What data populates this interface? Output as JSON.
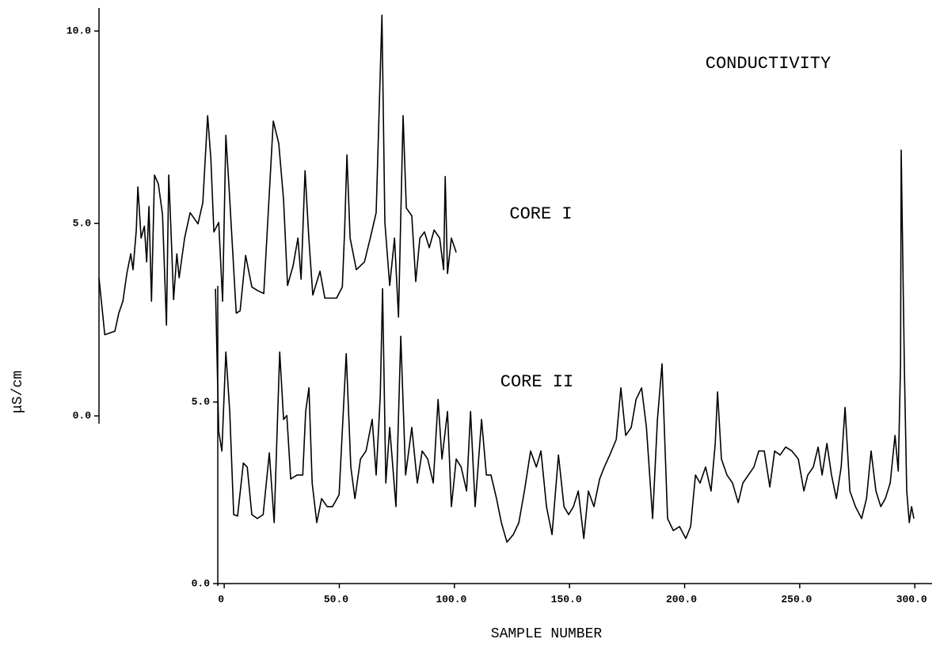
{
  "chart_data": [
    {
      "type": "line",
      "title": "CONDUCTIVITY",
      "y_label": "μS/cm",
      "xlim": [
        -54.4,
        307.5
      ],
      "ylim": [
        -0.2,
        10.6
      ],
      "yticks": [
        {
          "value": 0,
          "label": "0.0"
        },
        {
          "value": 5,
          "label": "5.0"
        },
        {
          "value": 10,
          "label": "10.0"
        }
      ],
      "series": [
        {
          "name": "CORE I",
          "color": "#000000",
          "x": [
            -54.4,
            -51.9,
            -47.5,
            -45.8,
            -44.0,
            -42.3,
            -40.6,
            -39.6,
            -38.2,
            -37.5,
            -36.1,
            -34.7,
            -33.7,
            -32.7,
            -31.6,
            -30.3,
            -28.6,
            -26.8,
            -25.1,
            -24.1,
            -23.0,
            -22.0,
            -20.6,
            -19.6,
            -17.2,
            -14.8,
            -11.4,
            -9.3,
            -7.2,
            -5.8,
            -4.5,
            -2.4,
            -0.7,
            0.7,
            2.1,
            5.2,
            6.9,
            9.3,
            12.0,
            14.4,
            17.2,
            21.3,
            23.7,
            25.8,
            27.5,
            29.9,
            32.0,
            33.4,
            35.1,
            36.8,
            38.5,
            41.6,
            43.7,
            48.8,
            51.3,
            52.3,
            53.3,
            54.7,
            57.4,
            60.9,
            63.6,
            66.0,
            68.5,
            69.8,
            71.9,
            74.0,
            75.7,
            77.7,
            79.1,
            81.5,
            83.2,
            85.0,
            87.0,
            89.1,
            91.2,
            93.6,
            95.3,
            96.0,
            97.0,
            98.7,
            100.8
          ],
          "values": [
            3.59,
            2.11,
            2.2,
            2.67,
            2.98,
            3.7,
            4.21,
            3.8,
            4.83,
            5.95,
            4.62,
            4.93,
            4.0,
            5.44,
            2.98,
            6.26,
            6.02,
            5.24,
            2.36,
            6.26,
            4.62,
            3.02,
            4.21,
            3.59,
            4.62,
            5.28,
            4.99,
            5.54,
            7.8,
            6.67,
            4.78,
            5.03,
            2.98,
            7.29,
            5.95,
            2.67,
            2.73,
            4.17,
            3.35,
            3.26,
            3.18,
            7.66,
            7.08,
            5.61,
            3.39,
            3.9,
            4.62,
            3.55,
            6.37,
            4.58,
            3.14,
            3.76,
            3.06,
            3.06,
            3.35,
            4.83,
            6.78,
            4.62,
            3.8,
            4.0,
            4.66,
            5.28,
            10.41,
            5.03,
            3.39,
            4.62,
            2.57,
            7.8,
            5.4,
            5.2,
            3.49,
            4.62,
            4.78,
            4.37,
            4.83,
            4.62,
            3.8,
            6.22,
            3.7,
            4.62,
            4.25
          ]
        }
      ]
    },
    {
      "type": "line",
      "x_label": "SAMPLE NUMBER",
      "xlim": [
        -54.4,
        307.5
      ],
      "ylim": [
        0,
        8.2
      ],
      "xticks": [
        0,
        {
          "value": 50,
          "label": "50.0"
        },
        {
          "value": 100,
          "label": "100.0"
        },
        {
          "value": 150,
          "label": "150.0"
        },
        {
          "value": 200,
          "label": "200.0"
        },
        {
          "value": 250,
          "label": "250.0"
        },
        {
          "value": 300,
          "label": "300.0"
        }
      ],
      "yticks": [
        {
          "value": 0,
          "label": "0.0"
        },
        {
          "value": 5,
          "label": "5.0"
        }
      ],
      "series": [
        {
          "name": "CORE II",
          "color": "#000000",
          "x": [
            -3.8,
            -2.4,
            -1.0,
            0.7,
            2.4,
            4.1,
            5.8,
            8.3,
            10.0,
            12.0,
            14.4,
            16.9,
            19.6,
            21.7,
            24.1,
            25.8,
            27.2,
            28.9,
            31.6,
            34.1,
            35.4,
            36.8,
            38.2,
            40.2,
            42.3,
            44.7,
            47.1,
            49.9,
            53.0,
            55.0,
            56.8,
            59.2,
            61.6,
            64.3,
            66.0,
            67.8,
            68.8,
            70.2,
            71.9,
            74.6,
            76.7,
            78.8,
            81.5,
            83.9,
            86.0,
            88.4,
            90.8,
            92.9,
            94.6,
            97.0,
            98.7,
            100.8,
            102.9,
            105.3,
            107.0,
            109.0,
            111.8,
            113.9,
            115.9,
            118.3,
            120.4,
            122.8,
            125.6,
            128.0,
            130.4,
            133.1,
            135.6,
            137.6,
            140.0,
            142.4,
            145.2,
            147.6,
            149.6,
            151.7,
            153.8,
            156.2,
            158.2,
            160.6,
            163.1,
            165.1,
            167.5,
            170.3,
            172.3,
            174.4,
            176.8,
            178.9,
            181.3,
            183.4,
            186.1,
            188.2,
            190.2,
            192.6,
            195.1,
            197.8,
            200.5,
            202.6,
            204.7,
            206.7,
            209.1,
            211.5,
            213.3,
            214.3,
            216.0,
            218.4,
            220.8,
            223.3,
            225.3,
            227.7,
            230.1,
            232.2,
            234.6,
            237.0,
            239.1,
            241.5,
            243.9,
            246.6,
            249.4,
            251.8,
            253.5,
            255.9,
            258.0,
            259.7,
            261.8,
            263.8,
            265.9,
            268.0,
            269.7,
            271.8,
            274.2,
            276.9,
            279.0,
            281.0,
            283.1,
            285.2,
            287.2,
            289.3,
            291.4,
            292.8,
            293.8,
            294.1,
            295.5,
            296.5,
            297.6,
            298.6,
            299.6
          ],
          "values": [
            8.12,
            4.19,
            3.65,
            6.38,
            4.74,
            1.9,
            1.86,
            3.32,
            3.21,
            1.9,
            1.79,
            1.9,
            3.6,
            1.68,
            6.38,
            4.52,
            4.63,
            2.88,
            2.99,
            2.99,
            4.74,
            5.39,
            2.77,
            1.68,
            2.34,
            2.12,
            2.12,
            2.45,
            6.33,
            3.21,
            2.34,
            3.43,
            3.65,
            4.52,
            2.99,
            5.17,
            8.12,
            2.77,
            4.3,
            2.12,
            6.81,
            2.99,
            4.3,
            2.77,
            3.65,
            3.43,
            2.77,
            5.07,
            3.43,
            4.74,
            2.12,
            3.43,
            3.21,
            2.55,
            4.74,
            2.12,
            4.52,
            2.99,
            2.99,
            2.34,
            1.68,
            1.14,
            1.35,
            1.68,
            2.55,
            3.65,
            3.21,
            3.65,
            2.12,
            1.35,
            3.54,
            2.12,
            1.9,
            2.12,
            2.55,
            1.24,
            2.55,
            2.12,
            2.88,
            3.21,
            3.54,
            3.97,
            5.39,
            4.08,
            4.3,
            5.07,
            5.39,
            4.3,
            1.79,
            4.52,
            6.05,
            1.79,
            1.46,
            1.57,
            1.24,
            1.57,
            2.99,
            2.77,
            3.21,
            2.55,
            3.86,
            5.28,
            3.43,
            2.99,
            2.77,
            2.23,
            2.77,
            2.99,
            3.21,
            3.65,
            3.65,
            2.66,
            3.65,
            3.54,
            3.76,
            3.65,
            3.43,
            2.55,
            2.99,
            3.21,
            3.76,
            2.99,
            3.86,
            2.99,
            2.34,
            3.21,
            4.85,
            2.55,
            2.12,
            1.79,
            2.34,
            3.65,
            2.55,
            2.12,
            2.34,
            2.77,
            4.08,
            3.1,
            6.05,
            11.94,
            5.83,
            2.55,
            1.68,
            2.12,
            1.79
          ]
        }
      ]
    }
  ]
}
